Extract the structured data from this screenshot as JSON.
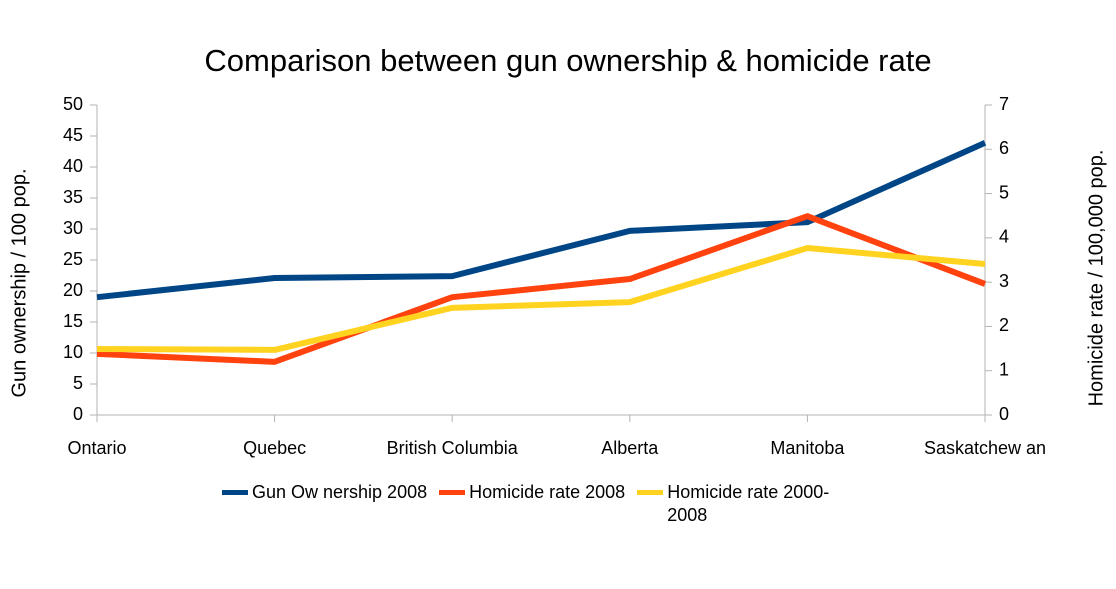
{
  "chart_data": {
    "type": "line",
    "title": "Comparison between gun ownership & homicide rate",
    "y_label": "Gun ownership / 100 pop.",
    "y2_label": "Homicide rate / 100,000 pop.",
    "categories": [
      "Ontario",
      "Quebec",
      "British Columbia",
      "Alberta",
      "Manitoba",
      "Saskatchew an"
    ],
    "series": [
      {
        "name": "Gun Ow nership 2008",
        "color": "#004586",
        "values": [
          19.0,
          22.1,
          22.4,
          29.7,
          31.1,
          43.9
        ]
      },
      {
        "name": "Homicide rate 2008",
        "color": "#ff420e",
        "axis": "y2",
        "values": [
          1.38,
          1.2,
          2.66,
          3.07,
          4.49,
          2.96
        ]
      },
      {
        "name": "Homicide rate 2000-2008",
        "color": "#ffd320",
        "axis": "y2",
        "values": [
          1.49,
          1.47,
          2.42,
          2.55,
          3.77,
          3.41
        ]
      }
    ],
    "ylim": [
      0,
      50
    ],
    "yticks": [
      0,
      5,
      10,
      15,
      20,
      25,
      30,
      35,
      40,
      45,
      50
    ],
    "y2lim": [
      0,
      7
    ],
    "y2ticks": [
      0,
      1,
      2,
      3,
      4,
      5,
      6,
      7
    ],
    "legend": "bottom"
  }
}
